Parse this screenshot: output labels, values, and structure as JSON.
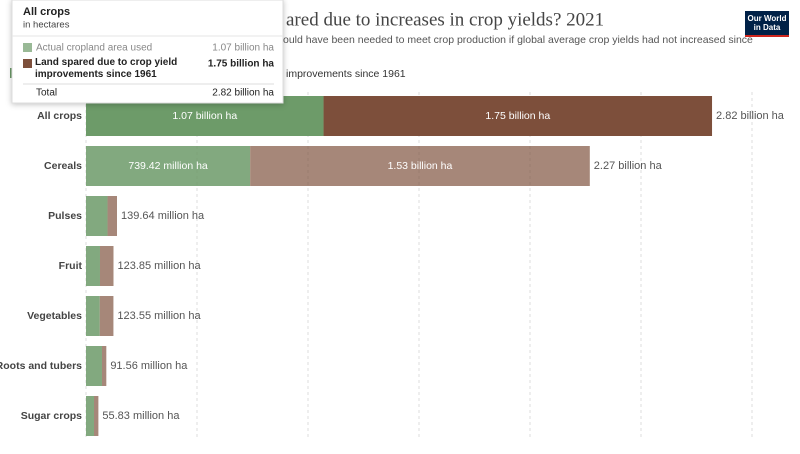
{
  "chart_data": {
    "type": "stacked-bar-horizontal",
    "title_visible": "ared due to increases in crop yields? 2021",
    "subtitle_visible": "ould have been needed to meet crop production if global average crop yields had not increased since",
    "legend_visible": "improvements since 1961",
    "categories": [
      "All crops",
      "Cereals",
      "Pulses",
      "Fruit",
      "Vegetables",
      "Roots and tubers",
      "Sugar crops"
    ],
    "series": [
      {
        "name": "Actual cropland area used",
        "color": "#6d9b69",
        "values": [
          1070,
          739.42,
          97,
          63,
          62,
          72,
          36
        ],
        "value_labels": [
          "1.07 billion ha",
          "739.42 million ha",
          null,
          null,
          null,
          null,
          null
        ]
      },
      {
        "name": "Land spared due to crop yield improvements since 1961",
        "color": "#7d4f3b",
        "values": [
          1750,
          1530,
          42.64,
          60.85,
          61.55,
          19.56,
          19.83
        ],
        "value_labels": [
          "1.75 billion ha",
          "1.53 billion ha",
          null,
          null,
          null,
          null,
          null
        ]
      }
    ],
    "totals": [
      2820,
      2270,
      139.64,
      123.85,
      123.55,
      91.56,
      55.83
    ],
    "total_labels": [
      "2.82 billion ha",
      "2.27 billion ha",
      "139.64 million ha",
      "123.85 million ha",
      "123.55 million ha",
      "91.56 million ha",
      "55.83 million ha"
    ],
    "xlim": [
      0,
      3000
    ],
    "xticks": [
      0,
      500,
      1000,
      1500,
      2000,
      2500,
      3000
    ],
    "grid": true
  },
  "tooltip": {
    "subtitle": "in hectares",
    "total_label": "Total"
  },
  "logo": [
    "Our World",
    "in Data"
  ]
}
